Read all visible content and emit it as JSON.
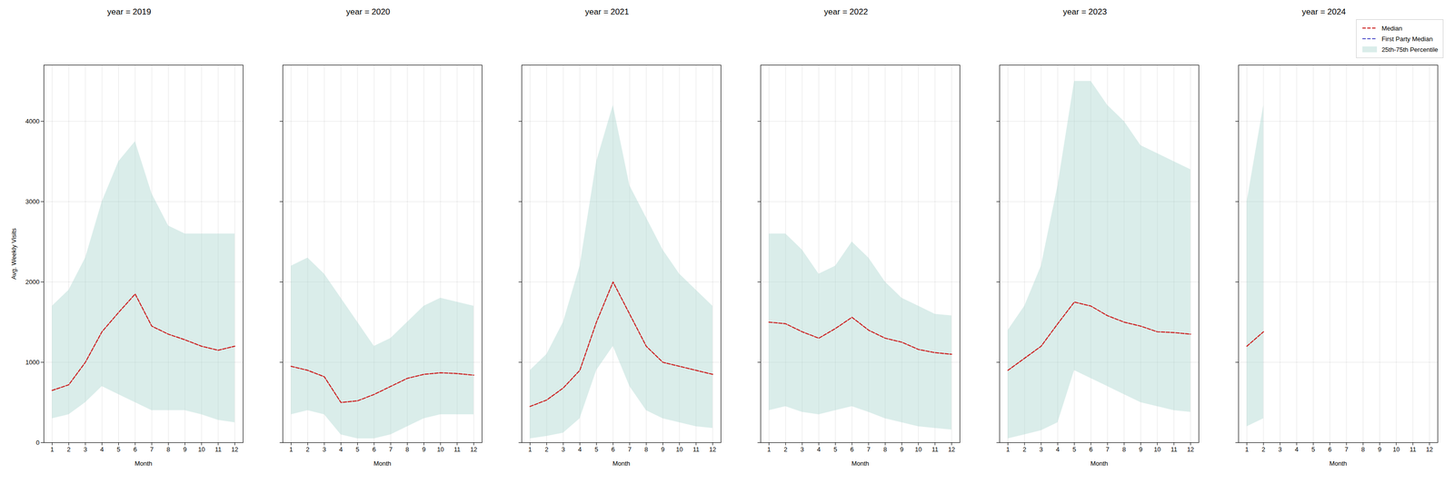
{
  "chart_data": [
    {
      "type": "line",
      "title": "year = 2019",
      "xlabel": "Month",
      "ylabel": "Avg. Weekly Visits",
      "x": [
        1,
        2,
        3,
        4,
        5,
        6,
        7,
        8,
        9,
        10,
        11,
        12
      ],
      "xlim": [
        0.5,
        12.5
      ],
      "xticks": [
        1,
        2,
        3,
        4,
        5,
        6,
        7,
        8,
        9,
        10,
        11,
        12
      ],
      "ylim": [
        0,
        4700
      ],
      "yticks": [
        0,
        1000,
        2000,
        3000,
        4000
      ],
      "grid": true,
      "series": [
        {
          "name": "25th-75th Percentile",
          "type": "band",
          "color": "#aed8d0",
          "low": [
            300,
            350,
            500,
            700,
            600,
            500,
            400,
            400,
            400,
            350,
            280,
            250
          ],
          "high": [
            1700,
            1900,
            2300,
            3000,
            3500,
            3750,
            3100,
            2700,
            2600,
            2600,
            2600,
            2600
          ]
        },
        {
          "name": "Median",
          "type": "line",
          "color": "#cc2222",
          "line_style": "dashed",
          "values": [
            650,
            720,
            1000,
            1380,
            1620,
            1850,
            1450,
            1350,
            1280,
            1200,
            1150,
            1200
          ]
        }
      ]
    },
    {
      "type": "line",
      "title": "year = 2020",
      "xlabel": "Month",
      "x": [
        1,
        2,
        3,
        4,
        5,
        6,
        7,
        8,
        9,
        10,
        11,
        12
      ],
      "xlim": [
        0.5,
        12.5
      ],
      "xticks": [
        1,
        2,
        3,
        4,
        5,
        6,
        7,
        8,
        9,
        10,
        11,
        12
      ],
      "ylim": [
        0,
        4700
      ],
      "yticks": [
        0,
        1000,
        2000,
        3000,
        4000
      ],
      "grid": true,
      "tick_labels": "x",
      "series": [
        {
          "name": "25th-75th Percentile",
          "type": "band",
          "color": "#aed8d0",
          "low": [
            350,
            400,
            350,
            100,
            50,
            50,
            100,
            200,
            300,
            350,
            350,
            350
          ],
          "high": [
            2200,
            2300,
            2100,
            1800,
            1500,
            1200,
            1300,
            1500,
            1700,
            1800,
            1750,
            1700
          ]
        },
        {
          "name": "Median",
          "type": "line",
          "color": "#cc2222",
          "line_style": "dashed",
          "values": [
            950,
            900,
            820,
            500,
            520,
            600,
            700,
            800,
            850,
            870,
            860,
            840
          ]
        }
      ]
    },
    {
      "type": "line",
      "title": "year = 2021",
      "xlabel": "Month",
      "x": [
        1,
        2,
        3,
        4,
        5,
        6,
        7,
        8,
        9,
        10,
        11,
        12
      ],
      "xlim": [
        0.5,
        12.5
      ],
      "xticks": [
        1,
        2,
        3,
        4,
        5,
        6,
        7,
        8,
        9,
        10,
        11,
        12
      ],
      "ylim": [
        0,
        4700
      ],
      "yticks": [
        0,
        1000,
        2000,
        3000,
        4000
      ],
      "grid": true,
      "tick_labels": "x",
      "series": [
        {
          "name": "25th-75th Percentile",
          "type": "band",
          "color": "#aed8d0",
          "low": [
            50,
            80,
            120,
            300,
            900,
            1200,
            700,
            400,
            300,
            250,
            200,
            180
          ],
          "high": [
            900,
            1100,
            1500,
            2200,
            3500,
            4200,
            3200,
            2800,
            2400,
            2100,
            1900,
            1700
          ]
        },
        {
          "name": "Median",
          "type": "line",
          "color": "#cc2222",
          "line_style": "dashed",
          "values": [
            450,
            530,
            680,
            900,
            1500,
            2000,
            1600,
            1200,
            1000,
            950,
            900,
            850
          ]
        }
      ]
    },
    {
      "type": "line",
      "title": "year = 2022",
      "xlabel": "Month",
      "x": [
        1,
        2,
        3,
        4,
        5,
        6,
        7,
        8,
        9,
        10,
        11,
        12
      ],
      "xlim": [
        0.5,
        12.5
      ],
      "xticks": [
        1,
        2,
        3,
        4,
        5,
        6,
        7,
        8,
        9,
        10,
        11,
        12
      ],
      "ylim": [
        0,
        4700
      ],
      "yticks": [
        0,
        1000,
        2000,
        3000,
        4000
      ],
      "grid": true,
      "tick_labels": "x",
      "series": [
        {
          "name": "25th-75th Percentile",
          "type": "band",
          "color": "#aed8d0",
          "low": [
            400,
            450,
            380,
            350,
            400,
            450,
            380,
            300,
            250,
            200,
            180,
            160
          ],
          "high": [
            2600,
            2600,
            2400,
            2100,
            2200,
            2500,
            2300,
            2000,
            1800,
            1700,
            1600,
            1580
          ]
        },
        {
          "name": "Median",
          "type": "line",
          "color": "#cc2222",
          "line_style": "dashed",
          "values": [
            1500,
            1480,
            1380,
            1300,
            1420,
            1560,
            1400,
            1300,
            1250,
            1160,
            1120,
            1100
          ]
        }
      ]
    },
    {
      "type": "line",
      "title": "year = 2023",
      "xlabel": "Month",
      "x": [
        1,
        2,
        3,
        4,
        5,
        6,
        7,
        8,
        9,
        10,
        11,
        12
      ],
      "xlim": [
        0.5,
        12.5
      ],
      "xticks": [
        1,
        2,
        3,
        4,
        5,
        6,
        7,
        8,
        9,
        10,
        11,
        12
      ],
      "ylim": [
        0,
        4700
      ],
      "yticks": [
        0,
        1000,
        2000,
        3000,
        4000
      ],
      "grid": true,
      "tick_labels": "x",
      "series": [
        {
          "name": "25th-75th Percentile",
          "type": "band",
          "color": "#aed8d0",
          "low": [
            50,
            100,
            150,
            250,
            900,
            800,
            700,
            600,
            500,
            450,
            400,
            380
          ],
          "high": [
            1400,
            1700,
            2200,
            3200,
            4500,
            4500,
            4200,
            4000,
            3700,
            3600,
            3500,
            3400
          ]
        },
        {
          "name": "Median",
          "type": "line",
          "color": "#cc2222",
          "line_style": "dashed",
          "values": [
            900,
            1050,
            1200,
            1480,
            1750,
            1700,
            1580,
            1500,
            1450,
            1380,
            1370,
            1350
          ]
        }
      ]
    },
    {
      "type": "line",
      "title": "year = 2024",
      "xlabel": "Month",
      "x": [
        1,
        2,
        3,
        4,
        5,
        6,
        7,
        8,
        9,
        10,
        11,
        12
      ],
      "xlim": [
        0.5,
        12.5
      ],
      "xticks": [
        1,
        2,
        3,
        4,
        5,
        6,
        7,
        8,
        9,
        10,
        11,
        12
      ],
      "ylim": [
        0,
        4700
      ],
      "yticks": [
        0,
        1000,
        2000,
        3000,
        4000
      ],
      "grid": true,
      "tick_labels": "x",
      "legend": "upper right",
      "series": [
        {
          "name": "25th-75th Percentile",
          "type": "band",
          "color": "#aed8d0",
          "low": [
            200,
            300,
            null,
            null,
            null,
            null,
            null,
            null,
            null,
            null,
            null,
            null
          ],
          "high": [
            3000,
            4200,
            null,
            null,
            null,
            null,
            null,
            null,
            null,
            null,
            null,
            null
          ]
        },
        {
          "name": "Median",
          "type": "line",
          "color": "#cc2222",
          "line_style": "dashed",
          "values": [
            1200,
            1380,
            null,
            null,
            null,
            null,
            null,
            null,
            null,
            null,
            null,
            null
          ]
        },
        {
          "name": "First Party Median",
          "type": "line",
          "color": "#5555cc",
          "line_style": "dashed",
          "values": [
            null,
            null,
            null,
            null,
            null,
            null,
            null,
            null,
            null,
            null,
            null,
            null
          ]
        }
      ]
    }
  ]
}
